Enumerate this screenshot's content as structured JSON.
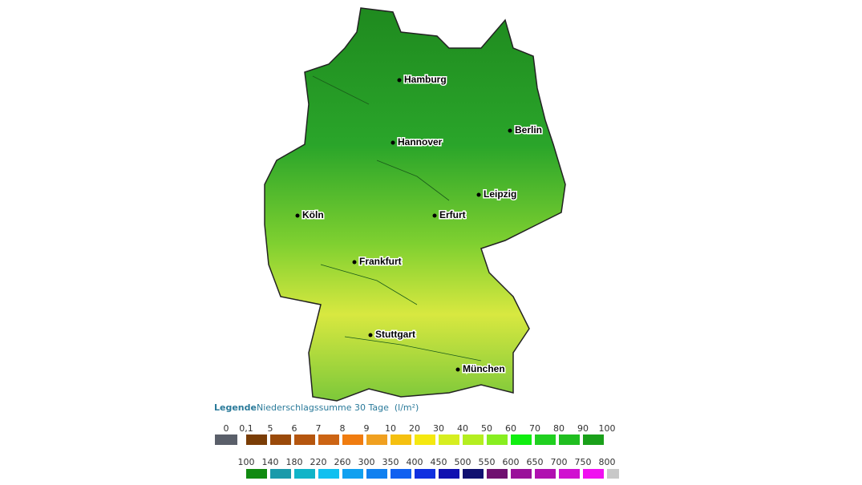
{
  "map": {
    "cities": [
      "Hamburg",
      "Berlin",
      "Hannover",
      "Leipzig",
      "Köln",
      "Erfurt",
      "Frankfurt",
      "Stuttgart",
      "München"
    ]
  },
  "legend": {
    "title": "Legende",
    "subtitle": "Niederschlagssumme 30 Tage  (l/m²)",
    "row1": {
      "labels": [
        "0",
        "0,1",
        "5",
        "6",
        "7",
        "8",
        "9",
        "10",
        "20",
        "30",
        "40",
        "50",
        "60",
        "70",
        "80",
        "90",
        "100"
      ],
      "colors": [
        "#5a5f6a",
        "#7a3d06",
        "#9a4a0a",
        "#b5560f",
        "#cc6414",
        "#f07c10",
        "#f0a020",
        "#f5c010",
        "#f5e810",
        "#d6ee20",
        "#b4ee20",
        "#88ee20",
        "#10ee10",
        "#20d020",
        "#20be20",
        "#1aa01a"
      ]
    },
    "row2": {
      "labels": [
        "100",
        "140",
        "180",
        "220",
        "260",
        "300",
        "350",
        "400",
        "450",
        "500",
        "550",
        "600",
        "650",
        "700",
        "750",
        "800"
      ],
      "colors": [
        "#108a10",
        "#1a9aaa",
        "#10b4c8",
        "#10c0f0",
        "#10a0f0",
        "#1080f0",
        "#1060f0",
        "#1030e0",
        "#1010b0",
        "#101070",
        "#701070",
        "#9a109a",
        "#b010b0",
        "#d010d0",
        "#f010f0",
        "#c8c8c8"
      ]
    }
  }
}
